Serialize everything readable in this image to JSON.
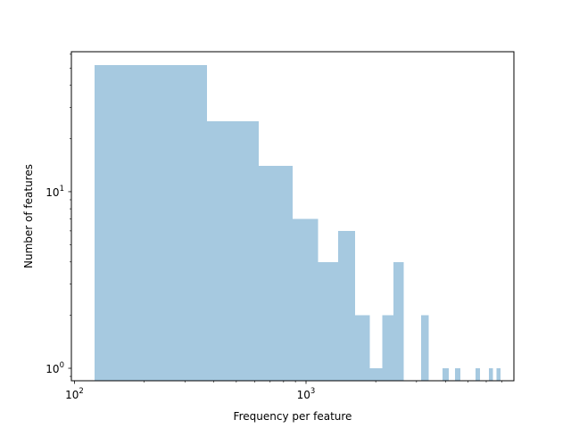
{
  "chart_data": {
    "type": "bar",
    "title": "",
    "xlabel": "Frequency per feature",
    "ylabel": "Number of features",
    "xscale": "log",
    "yscale": "log",
    "xlim": [
      97,
      7900
    ],
    "ylim": [
      0.85,
      62
    ],
    "x_ticks": [
      {
        "value": 100,
        "base": "10",
        "exp": "2"
      },
      {
        "value": 1000,
        "base": "10",
        "exp": "3"
      }
    ],
    "y_ticks": [
      {
        "value": 1,
        "base": "10",
        "exp": "0"
      },
      {
        "value": 10,
        "base": "10",
        "exp": "1"
      }
    ],
    "bar_color": "#a6c9e0",
    "grid": false,
    "bins": [
      {
        "x0": 122,
        "x1": 374,
        "value": 52
      },
      {
        "x0": 374,
        "x1": 625,
        "value": 25
      },
      {
        "x0": 625,
        "x1": 876,
        "value": 14
      },
      {
        "x0": 876,
        "x1": 1128,
        "value": 7
      },
      {
        "x0": 1128,
        "x1": 1379,
        "value": 4
      },
      {
        "x0": 1379,
        "x1": 1630,
        "value": 6
      },
      {
        "x0": 1630,
        "x1": 1882,
        "value": 2
      },
      {
        "x0": 1882,
        "x1": 2133,
        "value": 1
      },
      {
        "x0": 2133,
        "x1": 2384,
        "value": 2
      },
      {
        "x0": 2384,
        "x1": 2636,
        "value": 4
      },
      {
        "x0": 3138,
        "x1": 3389,
        "value": 2
      },
      {
        "x0": 3892,
        "x1": 4143,
        "value": 1
      },
      {
        "x0": 4394,
        "x1": 4646,
        "value": 1
      },
      {
        "x0": 5400,
        "x1": 5651,
        "value": 1
      },
      {
        "x0": 6154,
        "x1": 6405,
        "value": 1
      },
      {
        "x0": 6656,
        "x1": 6908,
        "value": 1
      }
    ]
  }
}
